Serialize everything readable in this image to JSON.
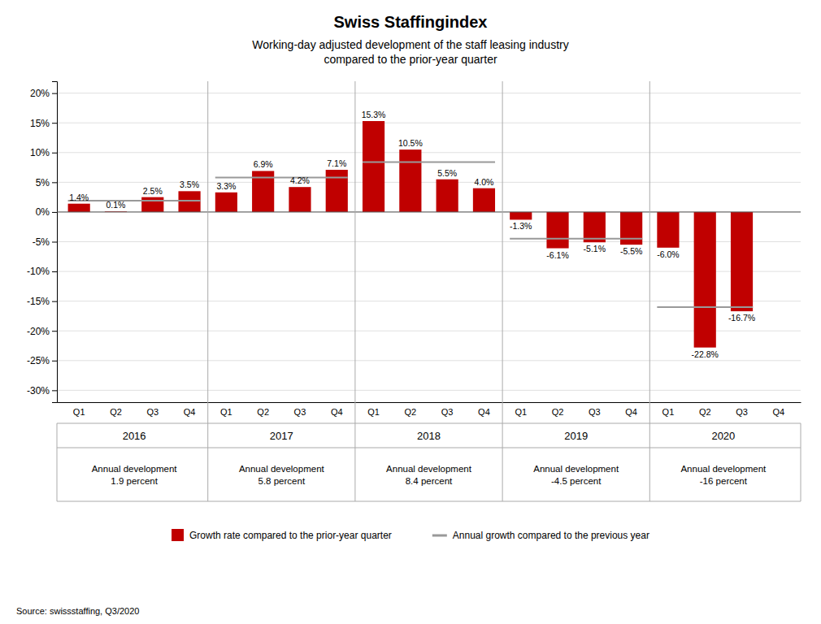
{
  "chart_data": {
    "type": "bar",
    "title": "Swiss Staffingindex",
    "subtitle": "Working-day adjusted development of the staff leasing industry\ncompared to the prior-year quarter",
    "source": "Source: swissstaffing, Q3/2020",
    "categories": [
      "Q1",
      "Q2",
      "Q3",
      "Q4",
      "Q1",
      "Q2",
      "Q3",
      "Q4",
      "Q1",
      "Q2",
      "Q3",
      "Q4",
      "Q1",
      "Q2",
      "Q3",
      "Q4",
      "Q1",
      "Q2",
      "Q3",
      "Q4"
    ],
    "groups": [
      "2016",
      "2017",
      "2018",
      "2019",
      "2020"
    ],
    "series": [
      {
        "name": "Growth rate compared to the prior-year quarter",
        "color": "#c00000",
        "values": [
          1.4,
          0.1,
          2.5,
          3.5,
          3.3,
          6.9,
          4.2,
          7.1,
          15.3,
          10.5,
          5.5,
          4.0,
          -1.3,
          -6.1,
          -5.1,
          -5.5,
          -6.0,
          -22.8,
          -16.7,
          null
        ],
        "value_labels": [
          "1.4%",
          "0.1%",
          "2.5%",
          "3.5%",
          "3.3%",
          "6.9%",
          "4.2%",
          "7.1%",
          "15.3%",
          "10.5%",
          "5.5%",
          "4.0%",
          "-1.3%",
          "-6.1%",
          "-5.1%",
          "-5.5%",
          "-6.0%",
          "-22.8%",
          "-16.7%",
          null
        ]
      }
    ],
    "annual_series": {
      "name": "Annual growth compared to the previous year",
      "color": "#999999",
      "type": "line",
      "values": [
        1.9,
        5.8,
        8.4,
        -4.5,
        -16.0
      ],
      "labels": [
        "Annual development\n1.9 percent",
        "Annual development\n5.8 percent",
        "Annual development\n8.4 percent",
        "Annual development\n-4.5 percent",
        "Annual development\n-16 percent"
      ]
    },
    "ylim": [
      -32,
      22
    ],
    "yticks": [
      {
        "value": -30,
        "label": "-30%"
      },
      {
        "value": -25,
        "label": "-25%"
      },
      {
        "value": -20,
        "label": "-20%"
      },
      {
        "value": -15,
        "label": "-15%"
      },
      {
        "value": -10,
        "label": "-10%"
      },
      {
        "value": -5,
        "label": "-5%"
      },
      {
        "value": 0,
        "label": "0%"
      },
      {
        "value": 5,
        "label": "5%"
      },
      {
        "value": 10,
        "label": "10%"
      },
      {
        "value": 15,
        "label": "15%"
      },
      {
        "value": 20,
        "label": "20%"
      }
    ],
    "grid": true,
    "data_labels": true,
    "legend": "bottom"
  }
}
